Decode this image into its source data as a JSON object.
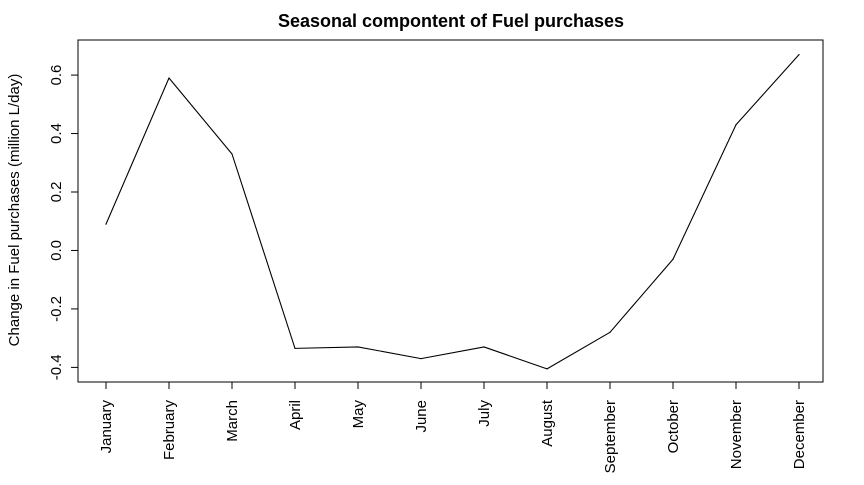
{
  "chart_data": {
    "type": "line",
    "title": "Seasonal compontent of Fuel purchases",
    "xlabel": "",
    "ylabel": "Change in Fuel purchases (million L/day)",
    "categories": [
      "January",
      "February",
      "March",
      "April",
      "May",
      "June",
      "July",
      "August",
      "September",
      "October",
      "November",
      "December"
    ],
    "series": [
      {
        "values": [
          0.09,
          0.59,
          0.33,
          -0.335,
          -0.33,
          -0.37,
          -0.33,
          -0.405,
          -0.28,
          -0.03,
          0.43,
          0.67
        ]
      }
    ],
    "ylim": [
      -0.45,
      0.72
    ],
    "yticks": [
      "-0.4",
      "-0.2",
      "0.0",
      "0.2",
      "0.4",
      "0.6"
    ],
    "grid": false,
    "line_color": "#000000"
  }
}
